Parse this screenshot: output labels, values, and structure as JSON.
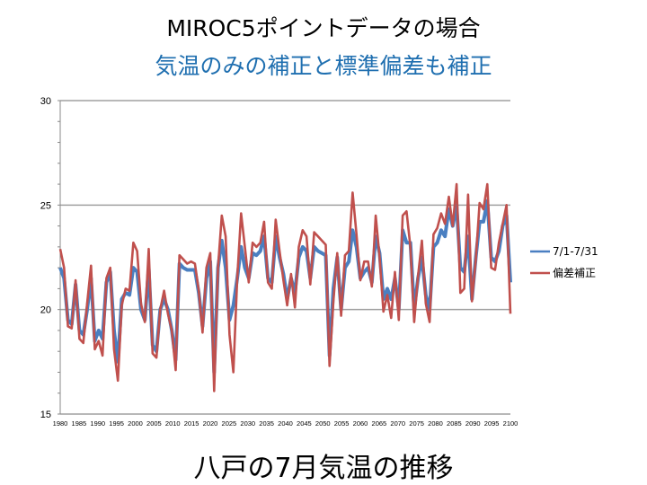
{
  "title": "MIROC5ポイントデータの場合",
  "subtitle": "気温のみの補正と標準偏差も補正",
  "caption": "八戸の7月気温の推移",
  "colors": {
    "series1": "#4a7fc1",
    "series2": "#c0504d",
    "grid": "#a0a0a0",
    "subtitle": "#1f6fb0"
  },
  "chart_data": {
    "type": "line",
    "ylim": [
      15,
      30
    ],
    "yticks": [
      15,
      20,
      25,
      30
    ],
    "xlim": [
      1980,
      2100
    ],
    "xtick_labels": [
      "1980",
      "1985",
      "1990",
      "1995",
      "2000",
      "2005",
      "2010",
      "2015",
      "2020",
      "2025",
      "2030",
      "2035",
      "2040",
      "2045",
      "2050",
      "2055",
      "2060",
      "2065",
      "2070",
      "2075",
      "2080",
      "2085",
      "2090",
      "2095",
      "2100"
    ],
    "grid": true,
    "legend_position": "right",
    "series": [
      {
        "name": "7/1-7/31",
        "values": [
          22.0,
          21.5,
          19.5,
          19.3,
          21.2,
          19.0,
          18.8,
          20.0,
          21.5,
          18.5,
          19.0,
          18.6,
          21.3,
          21.8,
          19.0,
          17.5,
          20.5,
          20.8,
          20.7,
          22.0,
          21.8,
          20.0,
          19.5,
          22.0,
          18.3,
          18.0,
          20.0,
          20.5,
          20.0,
          19.0,
          17.6,
          22.2,
          22.0,
          21.9,
          21.9,
          21.9,
          20.8,
          19.2,
          21.5,
          22.3,
          17.0,
          22.0,
          23.3,
          22.0,
          19.5,
          20.2,
          21.5,
          23.0,
          22.0,
          21.5,
          22.7,
          22.6,
          22.8,
          23.5,
          21.5,
          21.3,
          23.5,
          22.5,
          21.7,
          20.5,
          21.5,
          20.8,
          22.5,
          23.0,
          22.8,
          21.5,
          23.0,
          22.8,
          22.7,
          22.6,
          17.8,
          21.0,
          22.5,
          20.0,
          22.0,
          22.3,
          23.8,
          23.0,
          21.5,
          21.8,
          22.0,
          21.3,
          23.5,
          22.7,
          20.5,
          21.0,
          20.5,
          21.5,
          20.0,
          23.8,
          23.2,
          23.2,
          20.0,
          21.5,
          22.5,
          20.7,
          20.0,
          23.0,
          23.2,
          23.8,
          23.5,
          24.8,
          24.0,
          25.0,
          22.0,
          21.8,
          23.5,
          20.5,
          22.5,
          24.2,
          24.2,
          25.2,
          22.5,
          22.3,
          22.8,
          24.0,
          24.5,
          21.3
        ],
        "color": "#4a7fc1"
      },
      {
        "name": "偏差補正",
        "values": [
          22.9,
          22.0,
          19.2,
          19.1,
          21.4,
          18.6,
          18.4,
          20.3,
          22.1,
          18.1,
          18.5,
          17.8,
          21.5,
          22.0,
          18.1,
          16.6,
          20.2,
          21.0,
          20.9,
          23.2,
          22.8,
          20.3,
          19.4,
          22.9,
          17.9,
          17.7,
          20.0,
          20.9,
          19.8,
          19.0,
          17.1,
          22.6,
          22.4,
          22.2,
          22.3,
          22.2,
          20.9,
          18.9,
          22.0,
          22.7,
          16.1,
          22.0,
          24.5,
          23.5,
          18.8,
          17.0,
          21.5,
          24.6,
          23.0,
          21.3,
          23.2,
          23.0,
          23.2,
          24.2,
          21.3,
          21.0,
          24.3,
          22.8,
          21.4,
          20.2,
          21.7,
          20.1,
          23.0,
          23.8,
          23.5,
          21.2,
          23.7,
          23.5,
          23.3,
          23.1,
          17.3,
          20.4,
          22.7,
          19.7,
          22.6,
          22.8,
          25.6,
          23.6,
          21.4,
          22.3,
          22.3,
          21.1,
          24.5,
          22.5,
          19.9,
          20.7,
          19.6,
          21.8,
          19.5,
          24.5,
          24.7,
          23.0,
          19.4,
          21.6,
          23.3,
          20.3,
          19.4,
          23.6,
          23.9,
          24.6,
          24.1,
          25.4,
          24.0,
          26.0,
          20.8,
          21.0,
          25.5,
          20.4,
          22.4,
          25.1,
          24.8,
          26.0,
          22.0,
          21.9,
          23.2,
          24.1,
          25.0,
          19.8
        ],
        "color": "#c0504d"
      }
    ]
  }
}
